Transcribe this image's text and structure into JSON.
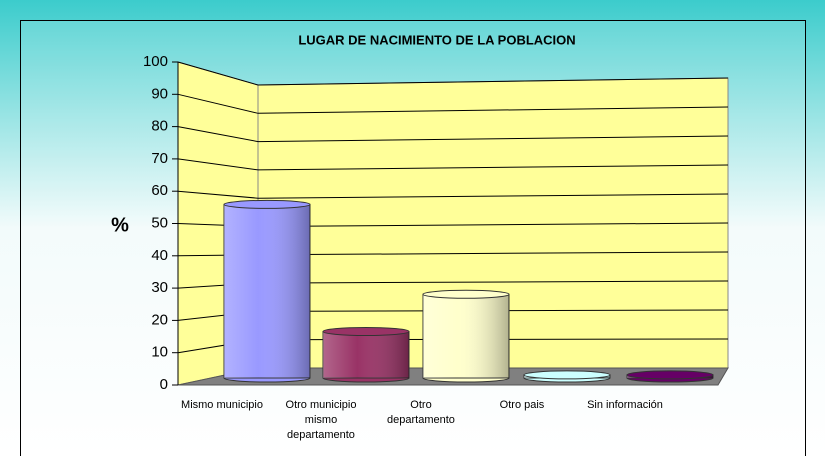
{
  "chart_data": {
    "type": "bar3d",
    "title": "LUGAR DE NACIMIENTO DE LA POBLACION",
    "y_label": "%",
    "categories": [
      "Mismo municipio",
      "Otro municipio mismo departamento",
      "Otro departamento",
      "Otro pais",
      "Sin información"
    ],
    "values": [
      56,
      15,
      27,
      1,
      1
    ],
    "colors": [
      "#9999ff",
      "#993366",
      "#ffffcc",
      "#ccffff",
      "#660066"
    ],
    "ylim": [
      0,
      100
    ],
    "yticks": [
      0,
      10,
      20,
      30,
      40,
      50,
      60,
      70,
      80,
      90,
      100
    ],
    "grid": true
  }
}
